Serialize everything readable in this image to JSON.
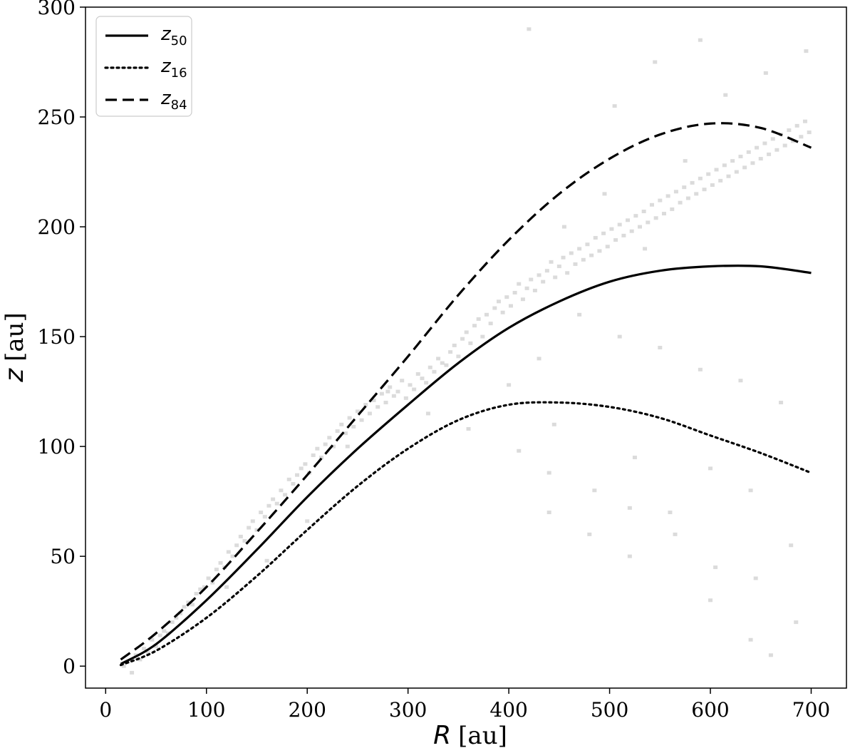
{
  "chart_data": {
    "type": "line",
    "xlabel": "R",
    "xlabel_unit": "[au]",
    "ylabel": "z",
    "ylabel_unit": "[au]",
    "xlim": [
      -20,
      735
    ],
    "ylim": [
      -10,
      300
    ],
    "xticks": [
      0,
      100,
      200,
      300,
      400,
      500,
      600,
      700
    ],
    "yticks": [
      0,
      50,
      100,
      150,
      200,
      250,
      300
    ],
    "grid": false,
    "legend_position": "top-left",
    "series": [
      {
        "name": "z",
        "subscript": "50",
        "style": "solid",
        "x": [
          15,
          50,
          100,
          150,
          200,
          250,
          300,
          350,
          400,
          450,
          500,
          550,
          600,
          650,
          700
        ],
        "y": [
          1,
          10,
          30,
          53,
          77,
          99,
          119,
          138,
          154,
          166,
          175,
          180,
          182,
          182,
          179
        ]
      },
      {
        "name": "z",
        "subscript": "16",
        "style": "dotted",
        "x": [
          15,
          50,
          100,
          150,
          200,
          250,
          300,
          350,
          400,
          450,
          500,
          550,
          600,
          650,
          700
        ],
        "y": [
          0.5,
          7,
          22,
          41,
          62,
          82,
          99,
          112,
          119,
          120,
          118,
          113,
          105,
          97,
          88
        ]
      },
      {
        "name": "z",
        "subscript": "84",
        "style": "dashed",
        "x": [
          15,
          50,
          100,
          150,
          200,
          250,
          300,
          350,
          400,
          450,
          500,
          550,
          600,
          650,
          700
        ],
        "y": [
          3,
          15,
          36,
          61,
          87,
          114,
          141,
          169,
          194,
          215,
          231,
          242,
          247,
          245,
          236
        ]
      }
    ],
    "scatter": {
      "color": "#bdbdbd",
      "note_style": "faint grey square markers",
      "x": [
        18,
        22,
        26,
        30,
        34,
        38,
        42,
        46,
        50,
        54,
        58,
        62,
        66,
        70,
        74,
        78,
        82,
        86,
        90,
        94,
        98,
        102,
        106,
        110,
        114,
        118,
        122,
        126,
        130,
        134,
        138,
        142,
        146,
        150,
        154,
        158,
        162,
        166,
        170,
        174,
        178,
        182,
        186,
        190,
        194,
        198,
        202,
        206,
        210,
        214,
        218,
        222,
        226,
        230,
        234,
        238,
        242,
        246,
        250,
        254,
        258,
        262,
        266,
        270,
        274,
        278,
        282,
        286,
        290,
        294,
        298,
        302,
        306,
        310,
        314,
        318,
        322,
        326,
        330,
        334,
        338,
        342,
        346,
        350,
        354,
        358,
        362,
        366,
        370,
        374,
        378,
        382,
        386,
        390,
        394,
        398,
        402,
        406,
        410,
        414,
        418,
        422,
        426,
        430,
        434,
        438,
        442,
        446,
        450,
        454,
        458,
        462,
        466,
        470,
        474,
        478,
        482,
        486,
        490,
        494,
        498,
        502,
        506,
        510,
        514,
        518,
        522,
        526,
        530,
        534,
        538,
        542,
        546,
        550,
        554,
        558,
        562,
        566,
        570,
        574,
        578,
        582,
        586,
        590,
        594,
        598,
        602,
        606,
        610,
        614,
        618,
        622,
        626,
        630,
        634,
        638,
        642,
        646,
        650,
        654,
        658,
        662,
        666,
        670,
        674,
        678,
        682,
        686,
        690,
        694,
        698,
        120,
        160,
        200,
        240,
        280,
        320,
        360,
        400,
        440,
        480,
        520,
        560,
        600,
        640,
        680,
        430,
        470,
        510,
        550,
        590,
        630,
        670,
        455,
        495,
        535,
        575,
        615,
        655,
        695,
        410,
        445,
        485,
        525,
        565,
        605,
        645,
        685,
        440,
        520,
        600,
        640,
        660,
        590,
        420,
        505,
        545
      ],
      "y": [
        0,
        2,
        -3,
        5,
        3,
        8,
        6,
        12,
        9,
        14,
        16,
        15,
        20,
        22,
        24,
        27,
        29,
        28,
        33,
        35,
        36,
        40,
        38,
        44,
        47,
        45,
        52,
        50,
        55,
        59,
        57,
        63,
        66,
        62,
        70,
        68,
        73,
        76,
        74,
        80,
        78,
        85,
        83,
        87,
        90,
        92,
        88,
        96,
        99,
        95,
        101,
        104,
        100,
        107,
        110,
        106,
        113,
        109,
        116,
        112,
        119,
        115,
        121,
        118,
        124,
        120,
        127,
        123,
        125,
        130,
        122,
        128,
        126,
        133,
        131,
        129,
        136,
        134,
        140,
        138,
        137,
        143,
        146,
        141,
        149,
        152,
        147,
        155,
        158,
        150,
        160,
        156,
        163,
        166,
        161,
        168,
        164,
        170,
        174,
        167,
        172,
        176,
        171,
        178,
        175,
        180,
        184,
        177,
        182,
        186,
        179,
        188,
        183,
        190,
        185,
        192,
        187,
        195,
        189,
        197,
        191,
        199,
        194,
        201,
        196,
        203,
        198,
        205,
        200,
        207,
        202,
        210,
        204,
        212,
        206,
        214,
        208,
        216,
        211,
        218,
        213,
        220,
        215,
        222,
        217,
        224,
        219,
        226,
        221,
        228,
        223,
        230,
        225,
        232,
        227,
        234,
        229,
        236,
        231,
        238,
        233,
        240,
        235,
        242,
        237,
        244,
        239,
        246,
        241,
        248,
        243,
        36,
        48,
        66,
        100,
        125,
        115,
        108,
        128,
        88,
        60,
        72,
        70,
        90,
        80,
        55,
        140,
        160,
        150,
        145,
        135,
        130,
        120,
        200,
        215,
        190,
        230,
        260,
        270,
        280,
        98,
        110,
        80,
        95,
        60,
        45,
        40,
        20,
        70,
        50,
        30,
        12,
        5,
        285,
        290,
        255,
        275
      ]
    }
  },
  "legend": [
    {
      "label": "z",
      "sub": "50",
      "style": "solid"
    },
    {
      "label": "z",
      "sub": "16",
      "style": "dotted"
    },
    {
      "label": "z",
      "sub": "84",
      "style": "dashed"
    }
  ]
}
